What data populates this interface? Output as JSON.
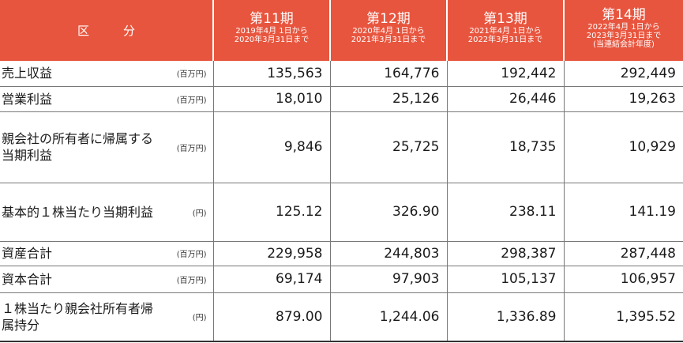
{
  "header": {
    "section_label": "区　分",
    "periods": [
      {
        "name": "第11期",
        "range_from": "2019年4月 1日から",
        "range_to": "2020年3月31日まで",
        "note": ""
      },
      {
        "name": "第12期",
        "range_from": "2020年4月 1日から",
        "range_to": "2021年3月31日まで",
        "note": ""
      },
      {
        "name": "第13期",
        "range_from": "2021年4月 1日から",
        "range_to": "2022年3月31日まで",
        "note": ""
      },
      {
        "name": "第14期",
        "range_from": "2022年4月 1日から",
        "range_to": "2023年3月31日まで",
        "note": "(当連結会計年度)"
      }
    ]
  },
  "rows": [
    {
      "label": "売上収益",
      "unit": "(百万円)",
      "values": [
        "135,563",
        "164,776",
        "192,442",
        "292,449"
      ]
    },
    {
      "label": "営業利益",
      "unit": "(百万円)",
      "values": [
        "18,010",
        "25,126",
        "26,446",
        "19,263"
      ]
    },
    {
      "label": "親会社の所有者に帰属する当期利益",
      "unit": "(百万円)",
      "values": [
        "9,846",
        "25,725",
        "18,735",
        "10,929"
      ]
    },
    {
      "label": "基本的１株当たり当期利益",
      "unit": "(円)",
      "values": [
        "125.12",
        "326.90",
        "238.11",
        "141.19"
      ]
    },
    {
      "label": "資産合計",
      "unit": "(百万円)",
      "values": [
        "229,958",
        "244,803",
        "298,387",
        "287,448"
      ]
    },
    {
      "label": "資本合計",
      "unit": "(百万円)",
      "values": [
        "69,174",
        "97,903",
        "105,137",
        "106,957"
      ]
    },
    {
      "label": "１株当たり親会社所有者帰属持分",
      "unit": "(円)",
      "values": [
        "879.00",
        "1,244.06",
        "1,336.89",
        "1,395.52"
      ]
    }
  ],
  "colors": {
    "header_bg": "#e8553e",
    "header_text": "#ffffff",
    "rule": "#777777"
  }
}
